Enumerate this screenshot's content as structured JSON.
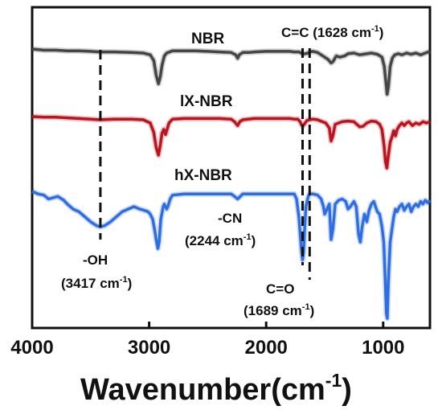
{
  "chart_data": {
    "type": "line",
    "xlabel": "Wavenumber(cm",
    "xlabel_sup": "-1",
    "xlabel_close": ")",
    "ylabel": "",
    "xlim": [
      4000,
      600
    ],
    "x_reversed": true,
    "x_ticks": [
      4000,
      3000,
      2000,
      1000
    ],
    "x_tick_labels": [
      "4000",
      "3000",
      "2000",
      "1000"
    ],
    "y_ticks_shown": false,
    "grid": false,
    "series": [
      {
        "name": "NBR",
        "color": "#454545",
        "points": [
          [
            4000,
            100
          ],
          [
            3900,
            98
          ],
          [
            3800,
            98
          ],
          [
            3700,
            97
          ],
          [
            3600,
            97
          ],
          [
            3500,
            96
          ],
          [
            3420,
            95
          ],
          [
            3300,
            95
          ],
          [
            3150,
            94
          ],
          [
            3050,
            93
          ],
          [
            2990,
            90
          ],
          [
            2960,
            80
          ],
          [
            2940,
            55
          ],
          [
            2920,
            40
          ],
          [
            2905,
            52
          ],
          [
            2890,
            72
          ],
          [
            2870,
            88
          ],
          [
            2850,
            93
          ],
          [
            2800,
            97
          ],
          [
            2700,
            97
          ],
          [
            2600,
            97
          ],
          [
            2500,
            96
          ],
          [
            2400,
            95
          ],
          [
            2300,
            94
          ],
          [
            2260,
            90
          ],
          [
            2244,
            84
          ],
          [
            2230,
            90
          ],
          [
            2200,
            94
          ],
          [
            2150,
            94
          ],
          [
            2100,
            95
          ],
          [
            2000,
            96
          ],
          [
            1900,
            96
          ],
          [
            1800,
            96
          ],
          [
            1760,
            95
          ],
          [
            1720,
            95
          ],
          [
            1700,
            93
          ],
          [
            1689,
            91
          ],
          [
            1670,
            92
          ],
          [
            1640,
            93
          ],
          [
            1628,
            95
          ],
          [
            1600,
            96
          ],
          [
            1560,
            94
          ],
          [
            1530,
            90
          ],
          [
            1500,
            86
          ],
          [
            1470,
            82
          ],
          [
            1445,
            76
          ],
          [
            1430,
            78
          ],
          [
            1400,
            88
          ],
          [
            1370,
            86
          ],
          [
            1330,
            88
          ],
          [
            1300,
            92
          ],
          [
            1250,
            93
          ],
          [
            1200,
            90
          ],
          [
            1170,
            91
          ],
          [
            1100,
            93
          ],
          [
            1050,
            91
          ],
          [
            1010,
            86
          ],
          [
            990,
            70
          ],
          [
            975,
            40
          ],
          [
            966,
            22
          ],
          [
            955,
            35
          ],
          [
            940,
            70
          ],
          [
            920,
            85
          ],
          [
            900,
            90
          ],
          [
            870,
            92
          ],
          [
            840,
            90
          ],
          [
            800,
            93
          ],
          [
            760,
            91
          ],
          [
            720,
            93
          ],
          [
            680,
            90
          ],
          [
            640,
            93
          ],
          [
            600,
            96
          ]
        ]
      },
      {
        "name": "lX-NBR",
        "color": "#b8151f",
        "points": [
          [
            4000,
            100
          ],
          [
            3900,
            99
          ],
          [
            3800,
            99
          ],
          [
            3700,
            98
          ],
          [
            3600,
            97
          ],
          [
            3500,
            96
          ],
          [
            3420,
            95
          ],
          [
            3300,
            96
          ],
          [
            3150,
            96
          ],
          [
            3050,
            95
          ],
          [
            2990,
            90
          ],
          [
            2960,
            75
          ],
          [
            2940,
            52
          ],
          [
            2920,
            40
          ],
          [
            2905,
            55
          ],
          [
            2890,
            74
          ],
          [
            2875,
            80
          ],
          [
            2860,
            72
          ],
          [
            2850,
            78
          ],
          [
            2830,
            90
          ],
          [
            2800,
            96
          ],
          [
            2700,
            97
          ],
          [
            2600,
            97
          ],
          [
            2500,
            97
          ],
          [
            2400,
            97
          ],
          [
            2300,
            96
          ],
          [
            2270,
            92
          ],
          [
            2244,
            86
          ],
          [
            2225,
            92
          ],
          [
            2200,
            95
          ],
          [
            2100,
            97
          ],
          [
            2000,
            97
          ],
          [
            1900,
            97
          ],
          [
            1800,
            97
          ],
          [
            1760,
            96
          ],
          [
            1730,
            96
          ],
          [
            1710,
            92
          ],
          [
            1700,
            88
          ],
          [
            1689,
            85
          ],
          [
            1675,
            88
          ],
          [
            1650,
            94
          ],
          [
            1628,
            95
          ],
          [
            1600,
            96
          ],
          [
            1560,
            95
          ],
          [
            1520,
            92
          ],
          [
            1490,
            90
          ],
          [
            1460,
            82
          ],
          [
            1445,
            62
          ],
          [
            1430,
            70
          ],
          [
            1410,
            88
          ],
          [
            1380,
            90
          ],
          [
            1350,
            92
          ],
          [
            1300,
            93
          ],
          [
            1250,
            92
          ],
          [
            1200,
            84
          ],
          [
            1170,
            85
          ],
          [
            1140,
            90
          ],
          [
            1100,
            93
          ],
          [
            1060,
            92
          ],
          [
            1030,
            88
          ],
          [
            1010,
            80
          ],
          [
            992,
            55
          ],
          [
            980,
            30
          ],
          [
            968,
            20
          ],
          [
            955,
            40
          ],
          [
            940,
            60
          ],
          [
            925,
            68
          ],
          [
            910,
            78
          ],
          [
            895,
            70
          ],
          [
            880,
            80
          ],
          [
            860,
            86
          ],
          [
            840,
            90
          ],
          [
            820,
            86
          ],
          [
            800,
            90
          ],
          [
            780,
            92
          ],
          [
            750,
            86
          ],
          [
            720,
            90
          ],
          [
            690,
            88
          ],
          [
            660,
            92
          ],
          [
            630,
            90
          ],
          [
            600,
            92
          ]
        ]
      },
      {
        "name": "hX-NBR",
        "color": "#2f6ee0",
        "points": [
          [
            4000,
            100
          ],
          [
            3950,
            98
          ],
          [
            3900,
            97
          ],
          [
            3860,
            94
          ],
          [
            3820,
            95
          ],
          [
            3780,
            96
          ],
          [
            3730,
            93
          ],
          [
            3700,
            90
          ],
          [
            3650,
            86
          ],
          [
            3600,
            84
          ],
          [
            3550,
            80
          ],
          [
            3500,
            76
          ],
          [
            3450,
            73
          ],
          [
            3417,
            72
          ],
          [
            3380,
            73
          ],
          [
            3330,
            76
          ],
          [
            3280,
            80
          ],
          [
            3230,
            84
          ],
          [
            3180,
            86
          ],
          [
            3130,
            88
          ],
          [
            3080,
            86
          ],
          [
            3040,
            85
          ],
          [
            3010,
            84
          ],
          [
            2990,
            82
          ],
          [
            2970,
            78
          ],
          [
            2950,
            68
          ],
          [
            2940,
            62
          ],
          [
            2925,
            55
          ],
          [
            2915,
            60
          ],
          [
            2900,
            78
          ],
          [
            2880,
            88
          ],
          [
            2870,
            90
          ],
          [
            2860,
            88
          ],
          [
            2850,
            86
          ],
          [
            2840,
            88
          ],
          [
            2820,
            94
          ],
          [
            2800,
            97
          ],
          [
            2700,
            98
          ],
          [
            2600,
            98
          ],
          [
            2500,
            98
          ],
          [
            2400,
            98
          ],
          [
            2300,
            98
          ],
          [
            2270,
            96
          ],
          [
            2244,
            94
          ],
          [
            2220,
            96
          ],
          [
            2200,
            98
          ],
          [
            2100,
            98
          ],
          [
            2000,
            98
          ],
          [
            1900,
            98
          ],
          [
            1800,
            98
          ],
          [
            1760,
            98
          ],
          [
            1740,
            94
          ],
          [
            1720,
            80
          ],
          [
            1700,
            55
          ],
          [
            1689,
            46
          ],
          [
            1680,
            52
          ],
          [
            1670,
            72
          ],
          [
            1660,
            88
          ],
          [
            1640,
            96
          ],
          [
            1628,
            98
          ],
          [
            1600,
            98
          ],
          [
            1560,
            97
          ],
          [
            1530,
            94
          ],
          [
            1510,
            88
          ],
          [
            1500,
            82
          ],
          [
            1480,
            86
          ],
          [
            1460,
            90
          ],
          [
            1445,
            62
          ],
          [
            1430,
            70
          ],
          [
            1410,
            90
          ],
          [
            1380,
            93
          ],
          [
            1350,
            94
          ],
          [
            1320,
            92
          ],
          [
            1300,
            86
          ],
          [
            1280,
            88
          ],
          [
            1250,
            92
          ],
          [
            1230,
            88
          ],
          [
            1210,
            66
          ],
          [
            1195,
            60
          ],
          [
            1180,
            72
          ],
          [
            1160,
            82
          ],
          [
            1140,
            76
          ],
          [
            1120,
            85
          ],
          [
            1100,
            90
          ],
          [
            1080,
            92
          ],
          [
            1050,
            84
          ],
          [
            1030,
            82
          ],
          [
            1010,
            72
          ],
          [
            995,
            60
          ],
          [
            982,
            30
          ],
          [
            972,
            4
          ],
          [
            965,
            0
          ],
          [
            955,
            30
          ],
          [
            940,
            60
          ],
          [
            925,
            70
          ],
          [
            910,
            80
          ],
          [
            895,
            86
          ],
          [
            880,
            84
          ],
          [
            860,
            88
          ],
          [
            840,
            90
          ],
          [
            820,
            85
          ],
          [
            800,
            88
          ],
          [
            780,
            90
          ],
          [
            760,
            84
          ],
          [
            740,
            88
          ],
          [
            720,
            90
          ],
          [
            700,
            88
          ],
          [
            680,
            92
          ],
          [
            660,
            90
          ],
          [
            640,
            93
          ],
          [
            620,
            91
          ],
          [
            600,
            93
          ]
        ]
      }
    ],
    "reference_lines": [
      3417,
      1689,
      1628
    ],
    "annotations": {
      "nbr": "NBR",
      "lxnbr": "lX-NBR",
      "hxnbr": "hX-NBR",
      "cc_text": "C=C  (1628 cm",
      "cc_sup": "-1",
      "cc_close": ")",
      "oh_text": "-OH",
      "oh_wave_text": "(3417 cm",
      "oh_sup": "-1",
      "oh_close": ")",
      "cn_text": "-CN",
      "cn_wave_text": "(2244 cm",
      "cn_sup": "-1",
      "cn_close": ")",
      "co_text": "C=O",
      "co_wave_text": "(1689 cm",
      "co_sup": "-1",
      "co_close": ")"
    }
  }
}
